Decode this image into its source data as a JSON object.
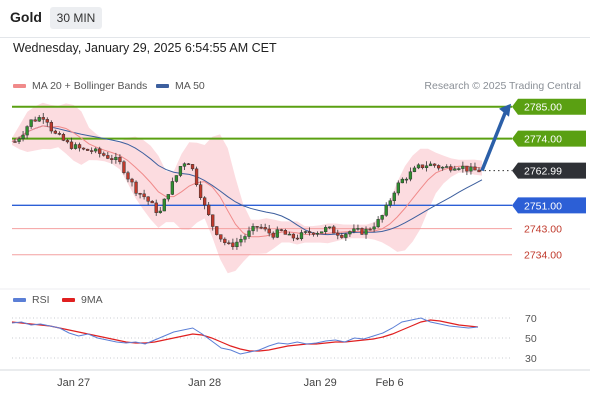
{
  "header": {
    "instrument": "Gold",
    "timeframe": "30 MIN",
    "datetime": "Wednesday, January 29, 2025 6:54:55 AM CET"
  },
  "legend_top": [
    {
      "label": "MA 20 + Bollinger Bands",
      "color": "#f08a8a"
    },
    {
      "label": "MA 50",
      "color": "#3d5f9e"
    }
  ],
  "credit": "Research © 2025 Trading Central",
  "legend_bottom": [
    {
      "label": "RSI",
      "color": "#5b7fd6"
    },
    {
      "label": "9MA",
      "color": "#e02020"
    }
  ],
  "colors": {
    "support_line": "#2c5fd6",
    "resistance_line": "#5aa012",
    "minor_line": "#f4a0a0",
    "candle_up": "#2f8f2f",
    "candle_down": "#c0392b",
    "bollinger_fill": "#fbd0d6",
    "arrow": "#2b5fa8"
  },
  "chart_data": {
    "type": "candlestick",
    "ylim": [
      2727,
      2788
    ],
    "levels": [
      {
        "label": "2785.00",
        "value": 2785,
        "style": "resistance"
      },
      {
        "label": "2774.00",
        "value": 2774,
        "style": "resistance"
      },
      {
        "label": "2762.99",
        "value": 2762.99,
        "style": "current"
      },
      {
        "label": "2751.00",
        "value": 2751,
        "style": "support"
      },
      {
        "label": "2743.00",
        "value": 2743,
        "style": "minor"
      },
      {
        "label": "2734.00",
        "value": 2734,
        "style": "minor"
      }
    ],
    "price_path": [
      2773,
      2776,
      2780,
      2781,
      2782,
      2776,
      2774,
      2772,
      2771,
      2770,
      2770,
      2769,
      2768,
      2767,
      2765,
      2760,
      2756,
      2754,
      2751,
      2748,
      2755,
      2760,
      2766,
      2766,
      2758,
      2750,
      2744,
      2740,
      2737,
      2738,
      2740,
      2742,
      2744,
      2742,
      2741,
      2742,
      2740,
      2740,
      2741,
      2742,
      2742,
      2743,
      2742,
      2741,
      2742,
      2742,
      2742,
      2744,
      2746,
      2751,
      2757,
      2760,
      2762,
      2764,
      2765,
      2765,
      2764,
      2764,
      2765,
      2764,
      2763,
      2763
    ],
    "x_tick_labels": [
      {
        "label": "Jan 27",
        "index": 8
      },
      {
        "label": "Jan 28",
        "index": 25
      },
      {
        "label": "Jan 29",
        "index": 40
      },
      {
        "label": "Feb 6",
        "index": 49
      }
    ],
    "projection": {
      "from": 2762.99,
      "to": 2785
    },
    "rsi": {
      "ylim": [
        20,
        80
      ],
      "ticks": [
        70,
        50,
        30
      ],
      "rsi_values": [
        65,
        66,
        63,
        64,
        62,
        60,
        55,
        52,
        54,
        50,
        48,
        46,
        45,
        46,
        44,
        48,
        52,
        56,
        58,
        60,
        54,
        47,
        40,
        38,
        34,
        36,
        38,
        42,
        45,
        44,
        46,
        44,
        45,
        47,
        48,
        46,
        50,
        49,
        52,
        55,
        60,
        66,
        68,
        70,
        66,
        64,
        62,
        61,
        60,
        61
      ],
      "ma9_values": [
        66,
        65,
        64,
        63,
        62,
        60,
        58,
        56,
        54,
        52,
        50,
        48,
        46,
        45,
        45,
        46,
        48,
        50,
        52,
        54,
        53,
        50,
        46,
        42,
        39,
        37,
        37,
        38,
        40,
        42,
        43,
        44,
        44,
        45,
        46,
        46,
        47,
        48,
        49,
        51,
        54,
        58,
        62,
        66,
        68,
        67,
        65,
        63,
        62,
        61
      ]
    }
  }
}
